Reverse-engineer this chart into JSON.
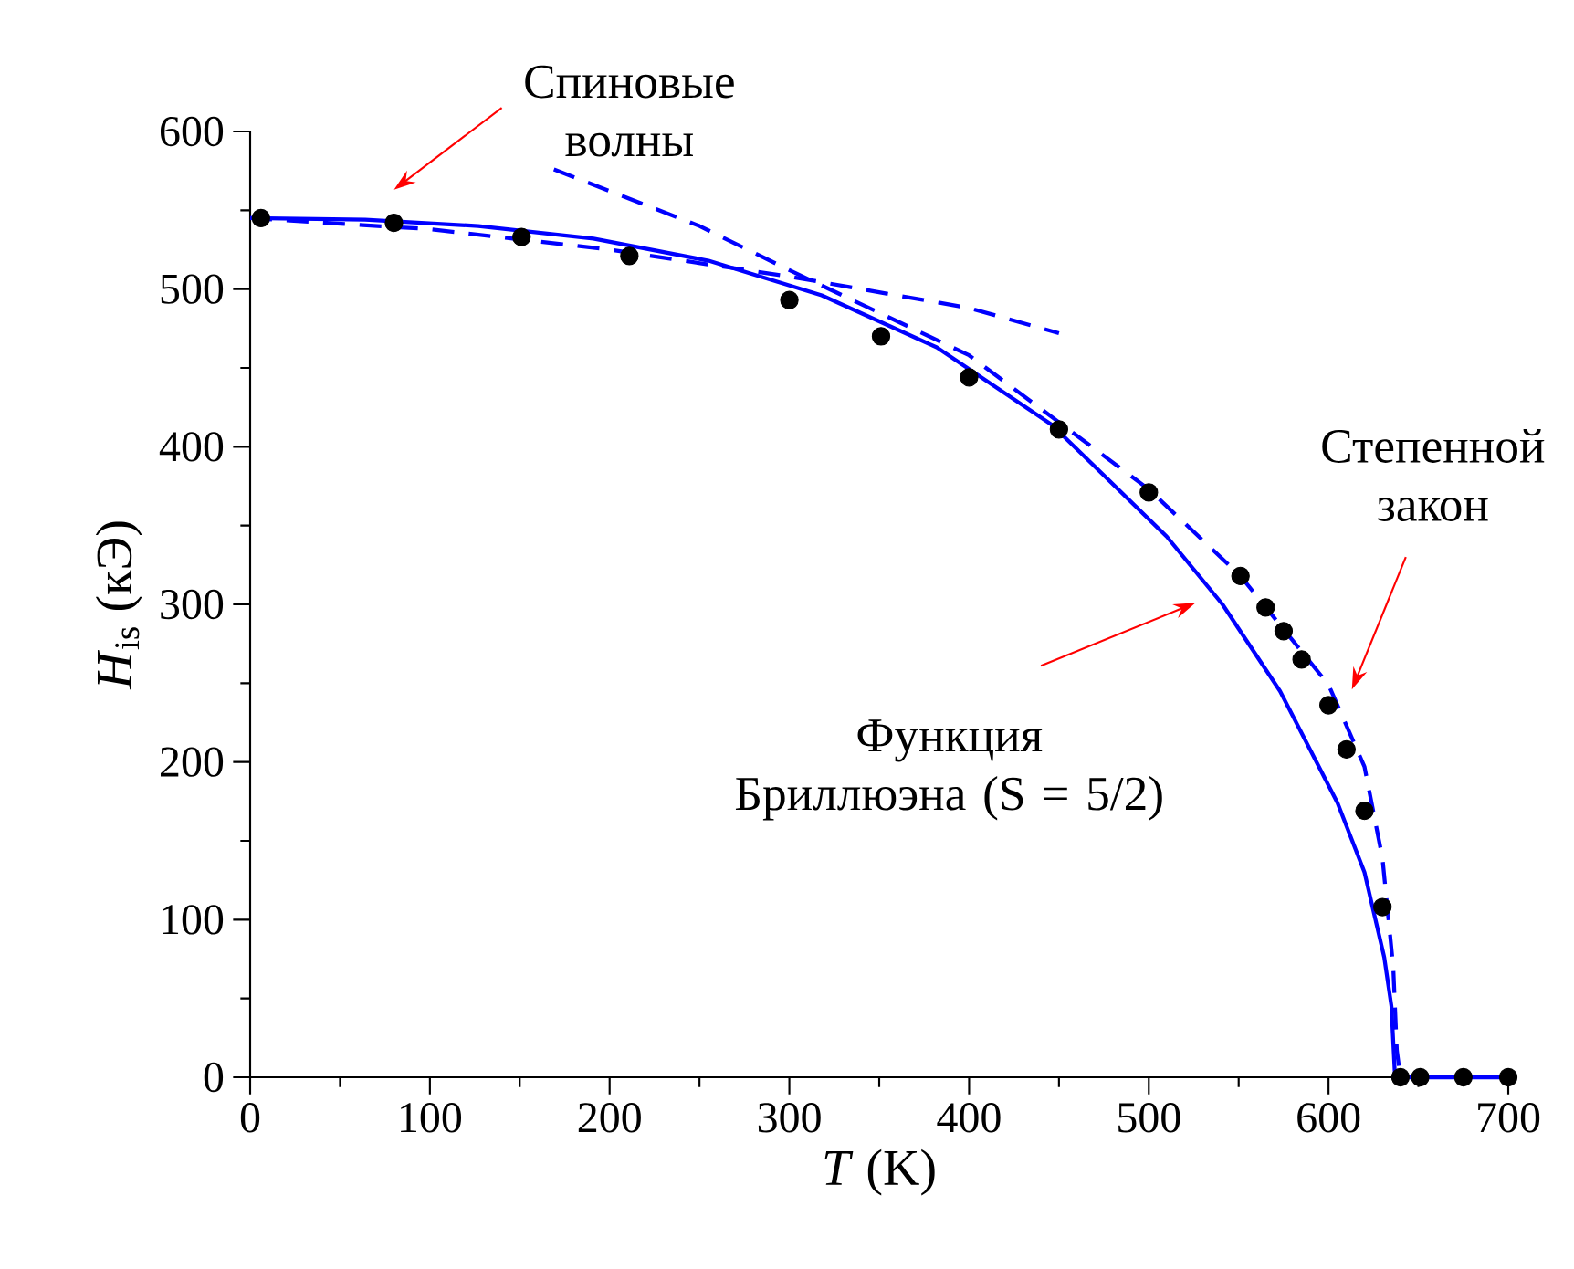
{
  "chart_data": {
    "type": "scatter",
    "xlabel": "*T* (K)",
    "ylabel": "*H*$_{is}$ (кЭ)",
    "xlim": [
      0,
      700
    ],
    "ylim": [
      0,
      600
    ],
    "xticks": [
      0,
      100,
      200,
      300,
      400,
      500,
      600,
      700
    ],
    "yticks": [
      0,
      100,
      200,
      300,
      400,
      500,
      600
    ],
    "grid": false,
    "series": [
      {
        "type": "line",
        "color": "#0000ff",
        "line_style": "solid",
        "marker": "none",
        "x": [
          0,
          64,
          127,
          191,
          255,
          318,
          382,
          446,
          510,
          541,
          573,
          605,
          620,
          631,
          635,
          637,
          650,
          700
        ],
        "values": [
          545,
          544,
          540,
          532,
          518,
          496,
          463,
          414,
          343,
          300,
          245,
          174,
          130,
          76,
          45,
          0,
          0,
          0
        ]
      },
      {
        "type": "line",
        "color": "#0000ff",
        "line_style": "dashed",
        "marker": "none",
        "x": [
          0,
          100,
          200,
          300,
          400,
          450
        ],
        "values": [
          545,
          538,
          525,
          508,
          488,
          472
        ]
      },
      {
        "type": "line",
        "color": "#0000ff",
        "line_style": "dashed",
        "marker": "none",
        "x": [
          169,
          250,
          300,
          400,
          500,
          551,
          600,
          620,
          630,
          636,
          638,
          640
        ],
        "values": [
          576,
          540,
          512,
          458,
          373,
          318,
          249,
          197,
          139,
          70,
          17,
          0
        ]
      },
      {
        "color": "#000000",
        "marker": "circle",
        "x": [
          6,
          80,
          151,
          211,
          300,
          351,
          400,
          450,
          500,
          551,
          565,
          575,
          585,
          600,
          610,
          620,
          630,
          640,
          651,
          675,
          700
        ],
        "values": [
          545,
          542,
          533,
          521,
          493,
          470,
          444,
          411,
          371,
          318,
          298,
          283,
          265,
          236,
          208,
          169,
          108,
          0,
          0,
          0,
          0
        ]
      }
    ],
    "annotations": [
      "Спиновые волны",
      "Степенной закон",
      "Функция Бриллюэна (S = 5/2)"
    ]
  }
}
